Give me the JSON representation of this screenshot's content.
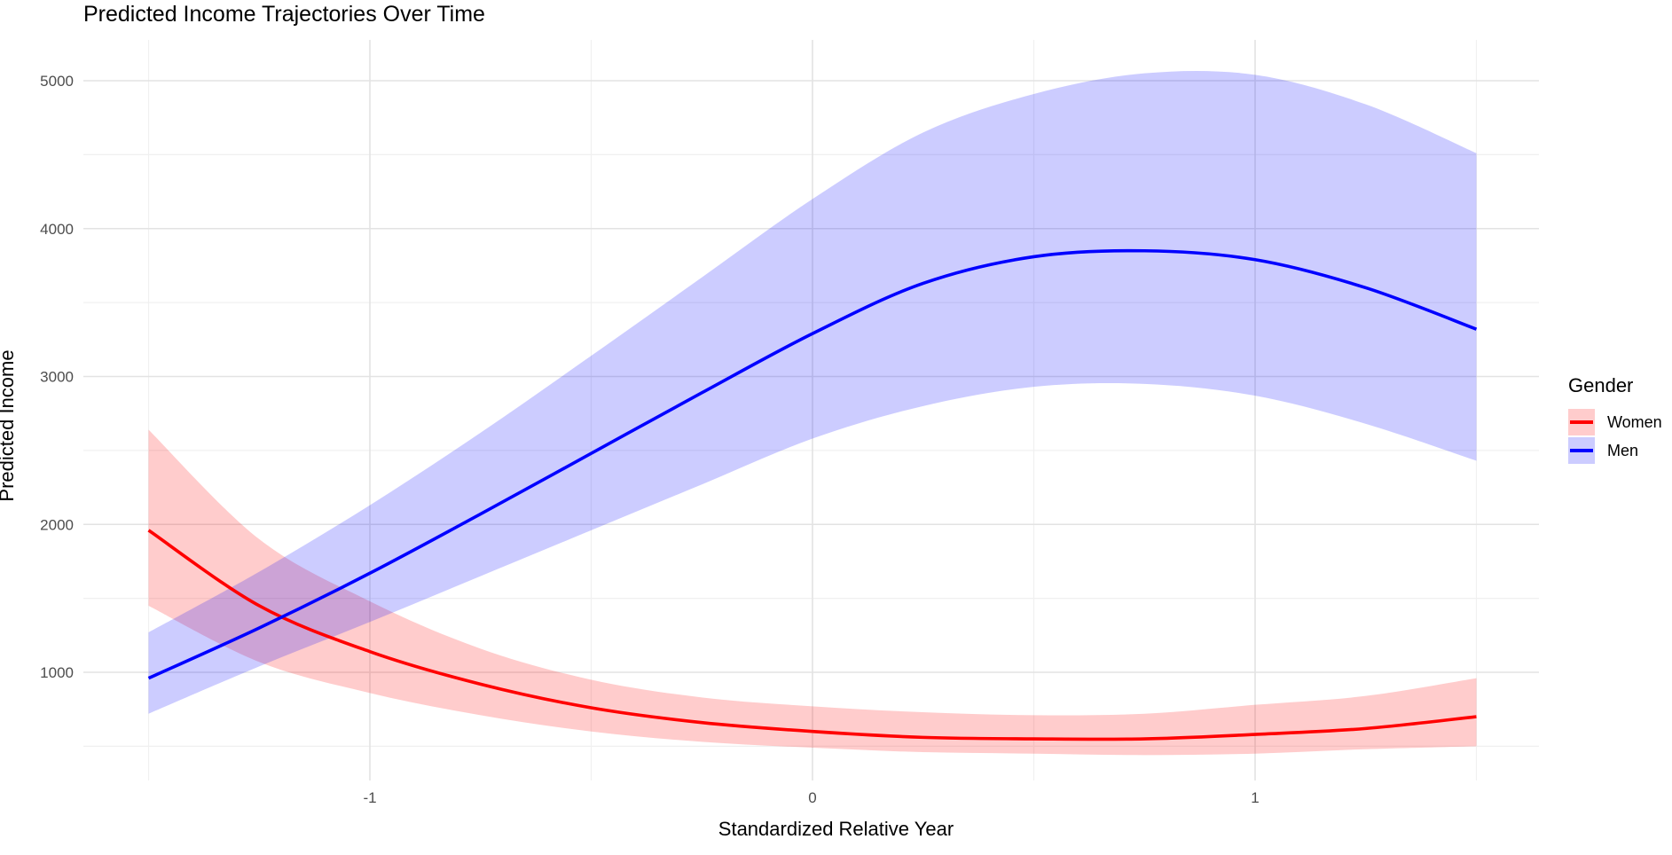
{
  "chart_data": {
    "type": "line",
    "title": "Predicted Income Trajectories Over Time",
    "xlabel": "Standardized Relative Year",
    "ylabel": "Predicted Income",
    "xlim": [
      -1.6,
      1.65
    ],
    "ylim": [
      250,
      5200
    ],
    "xticks": [
      -1,
      0,
      1
    ],
    "xtick_labels": [
      "-1",
      "0",
      "1"
    ],
    "yticks": [
      1000,
      2000,
      3000,
      4000,
      5000
    ],
    "ytick_labels": [
      "1000",
      "2000",
      "3000",
      "4000",
      "5000"
    ],
    "grid": true,
    "legend": {
      "title": "Gender",
      "position": "right"
    },
    "x": [
      -1.5,
      -1.25,
      -1.0,
      -0.75,
      -0.5,
      -0.25,
      0.0,
      0.25,
      0.5,
      0.75,
      1.0,
      1.25,
      1.5
    ],
    "series": [
      {
        "name": "Women",
        "color": "#ff0000",
        "band_color": "#ffcccc",
        "values": [
          1960,
          1450,
          1140,
          920,
          760,
          660,
          600,
          560,
          550,
          550,
          580,
          620,
          700
        ],
        "lower": [
          1450,
          1070,
          860,
          710,
          600,
          530,
          490,
          460,
          450,
          440,
          450,
          480,
          500
        ],
        "upper": [
          2640,
          1900,
          1480,
          1160,
          950,
          830,
          770,
          730,
          710,
          720,
          780,
          840,
          960
        ]
      },
      {
        "name": "Men",
        "color": "#0000ff",
        "band_color": "#ccccff",
        "values": [
          960,
          1300,
          1670,
          2070,
          2480,
          2890,
          3290,
          3630,
          3810,
          3850,
          3790,
          3600,
          3320
        ],
        "lower": [
          720,
          1040,
          1340,
          1650,
          1960,
          2270,
          2580,
          2800,
          2930,
          2950,
          2870,
          2680,
          2430
        ],
        "upper": [
          1270,
          1680,
          2130,
          2620,
          3140,
          3670,
          4200,
          4650,
          4910,
          5050,
          5040,
          4840,
          4510
        ]
      }
    ]
  }
}
